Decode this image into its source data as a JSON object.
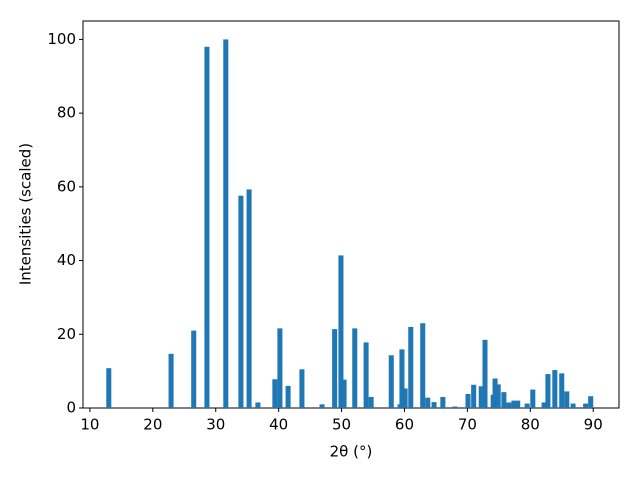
{
  "chart_data": {
    "type": "bar",
    "xlabel": "2θ (°)",
    "ylabel": "Intensities (scaled)",
    "color": "#1f77b4",
    "bar_width": 0.8,
    "x": [
      13.0,
      22.9,
      26.5,
      28.6,
      31.6,
      34.0,
      35.3,
      36.7,
      39.4,
      40.2,
      41.5,
      43.7,
      46.9,
      48.9,
      49.9,
      50.4,
      52.1,
      53.9,
      54.7,
      57.9,
      59.3,
      59.6,
      60.1,
      61.0,
      62.9,
      63.7,
      64.7,
      66.1,
      68.0,
      70.1,
      71.0,
      72.2,
      72.8,
      74.1,
      74.4,
      74.9,
      75.8,
      76.6,
      77.4,
      78.0,
      79.5,
      80.4,
      82.2,
      82.8,
      83.9,
      85.0,
      85.8,
      86.8,
      88.8,
      89.6
    ],
    "values": [
      10.8,
      14.7,
      21,
      98,
      100,
      57.6,
      59.3,
      1.5,
      7.8,
      21.6,
      6,
      10.5,
      1,
      21.4,
      41.4,
      7.7,
      21.6,
      17.8,
      3,
      14.3,
      1,
      15.9,
      5.3,
      22,
      23,
      2.8,
      1.6,
      3,
      0.4,
      3.8,
      6.3,
      5.9,
      18.5,
      3.6,
      8,
      6.4,
      4.3,
      1.5,
      2,
      2,
      1.2,
      5,
      1.5,
      9.2,
      10.3,
      9.4,
      4.5,
      1.2,
      1.2,
      3.2
    ],
    "xlim": [
      8.9,
      94.1
    ],
    "ylim": [
      0,
      105
    ],
    "xticks": [
      10,
      20,
      30,
      40,
      50,
      60,
      70,
      80,
      90
    ],
    "yticks": [
      0,
      20,
      40,
      60,
      80,
      100
    ]
  }
}
